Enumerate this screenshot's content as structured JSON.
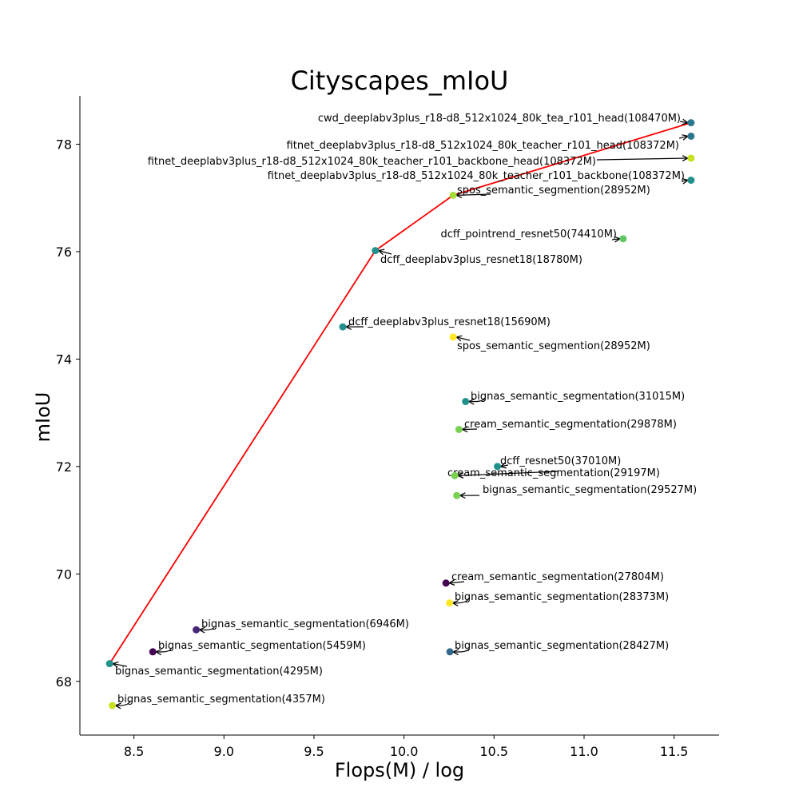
{
  "chart_data": {
    "type": "scatter",
    "title": "Cityscapes_mIoU",
    "xlabel": "Flops(M) / log",
    "ylabel": "mIoU",
    "xlim": [
      8.2,
      11.75
    ],
    "ylim": [
      67.0,
      78.9
    ],
    "xticks": [
      "8.5",
      "9.0",
      "9.5",
      "10.0",
      "10.5",
      "11.0",
      "11.5"
    ],
    "yticks": [
      "68",
      "70",
      "72",
      "74",
      "76",
      "78"
    ],
    "grid": false,
    "points": [
      {
        "x": 11.594,
        "y": 78.4,
        "color": "#2a788e",
        "label": "cwd_deeplabv3plus_r18-d8_512x1024_80k_tea_r101_head(108470M)"
      },
      {
        "x": 11.594,
        "y": 78.15,
        "color": "#2a788e",
        "label": "fitnet_deeplabv3plus_r18-d8_512x1024_80k_teacher_r101_head(108372M)"
      },
      {
        "x": 11.594,
        "y": 77.74,
        "color": "#c8e020",
        "label": "fitnet_deeplabv3plus_r18-d8_512x1024_80k_teacher_r101_backbone_head(108372M)"
      },
      {
        "x": 11.594,
        "y": 77.33,
        "color": "#21918c",
        "label": "fitnet_deeplabv3plus_r18-d8_512x1024_80k_teacher_r101_backbone(108372M)"
      },
      {
        "x": 10.273,
        "y": 77.05,
        "color": "#a5db36",
        "label": "spos_semantic_segmention(28952M)"
      },
      {
        "x": 11.217,
        "y": 76.24,
        "color": "#5ec962",
        "label": "dcff_pointrend_resnet50(74410M)"
      },
      {
        "x": 9.841,
        "y": 76.02,
        "color": "#21918c",
        "label": "dcff_deeplabv3plus_resnet18(18780M)"
      },
      {
        "x": 9.66,
        "y": 74.6,
        "color": "#21918c",
        "label": "dcff_deeplabv3plus_resnet18(15690M)"
      },
      {
        "x": 10.273,
        "y": 74.41,
        "color": "#fde725",
        "label": "spos_semantic_segmention(28952M)"
      },
      {
        "x": 10.342,
        "y": 73.21,
        "color": "#21918c",
        "label": "bignas_semantic_segmentation(31015M)"
      },
      {
        "x": 10.305,
        "y": 72.69,
        "color": "#7ad151",
        "label": "cream_semantic_segmentation(29878M)"
      },
      {
        "x": 10.519,
        "y": 72.0,
        "color": "#21918c",
        "label": "dcff_resnet50(37010M)"
      },
      {
        "x": 10.282,
        "y": 71.83,
        "color": "#7ad151",
        "label": "cream_semantic_segmentation(29197M)"
      },
      {
        "x": 10.293,
        "y": 71.46,
        "color": "#7ad151",
        "label": "bignas_semantic_segmentation(29527M)"
      },
      {
        "x": 10.233,
        "y": 69.83,
        "color": "#440154",
        "label": "cream_semantic_segmentation(27804M)"
      },
      {
        "x": 10.253,
        "y": 69.46,
        "color": "#fde725",
        "label": "bignas_semantic_segmentation(28373M)"
      },
      {
        "x": 8.846,
        "y": 68.96,
        "color": "#482475",
        "label": "bignas_semantic_segmentation(6946M)"
      },
      {
        "x": 10.255,
        "y": 68.55,
        "color": "#31688e",
        "label": "bignas_semantic_segmentation(28427M)"
      },
      {
        "x": 8.605,
        "y": 68.55,
        "color": "#440154",
        "label": "bignas_semantic_segmentation(5459M)"
      },
      {
        "x": 8.365,
        "y": 68.33,
        "color": "#21918c",
        "label": "bignas_semantic_segmentation(4295M)"
      },
      {
        "x": 8.38,
        "y": 67.55,
        "color": "#c8e020",
        "label": "bignas_semantic_segmentation(4357M)"
      }
    ],
    "pareto_line": {
      "color": "#ff0000",
      "x": [
        8.365,
        9.841,
        10.273,
        11.594
      ],
      "y": [
        68.33,
        76.02,
        77.05,
        78.4
      ]
    }
  }
}
